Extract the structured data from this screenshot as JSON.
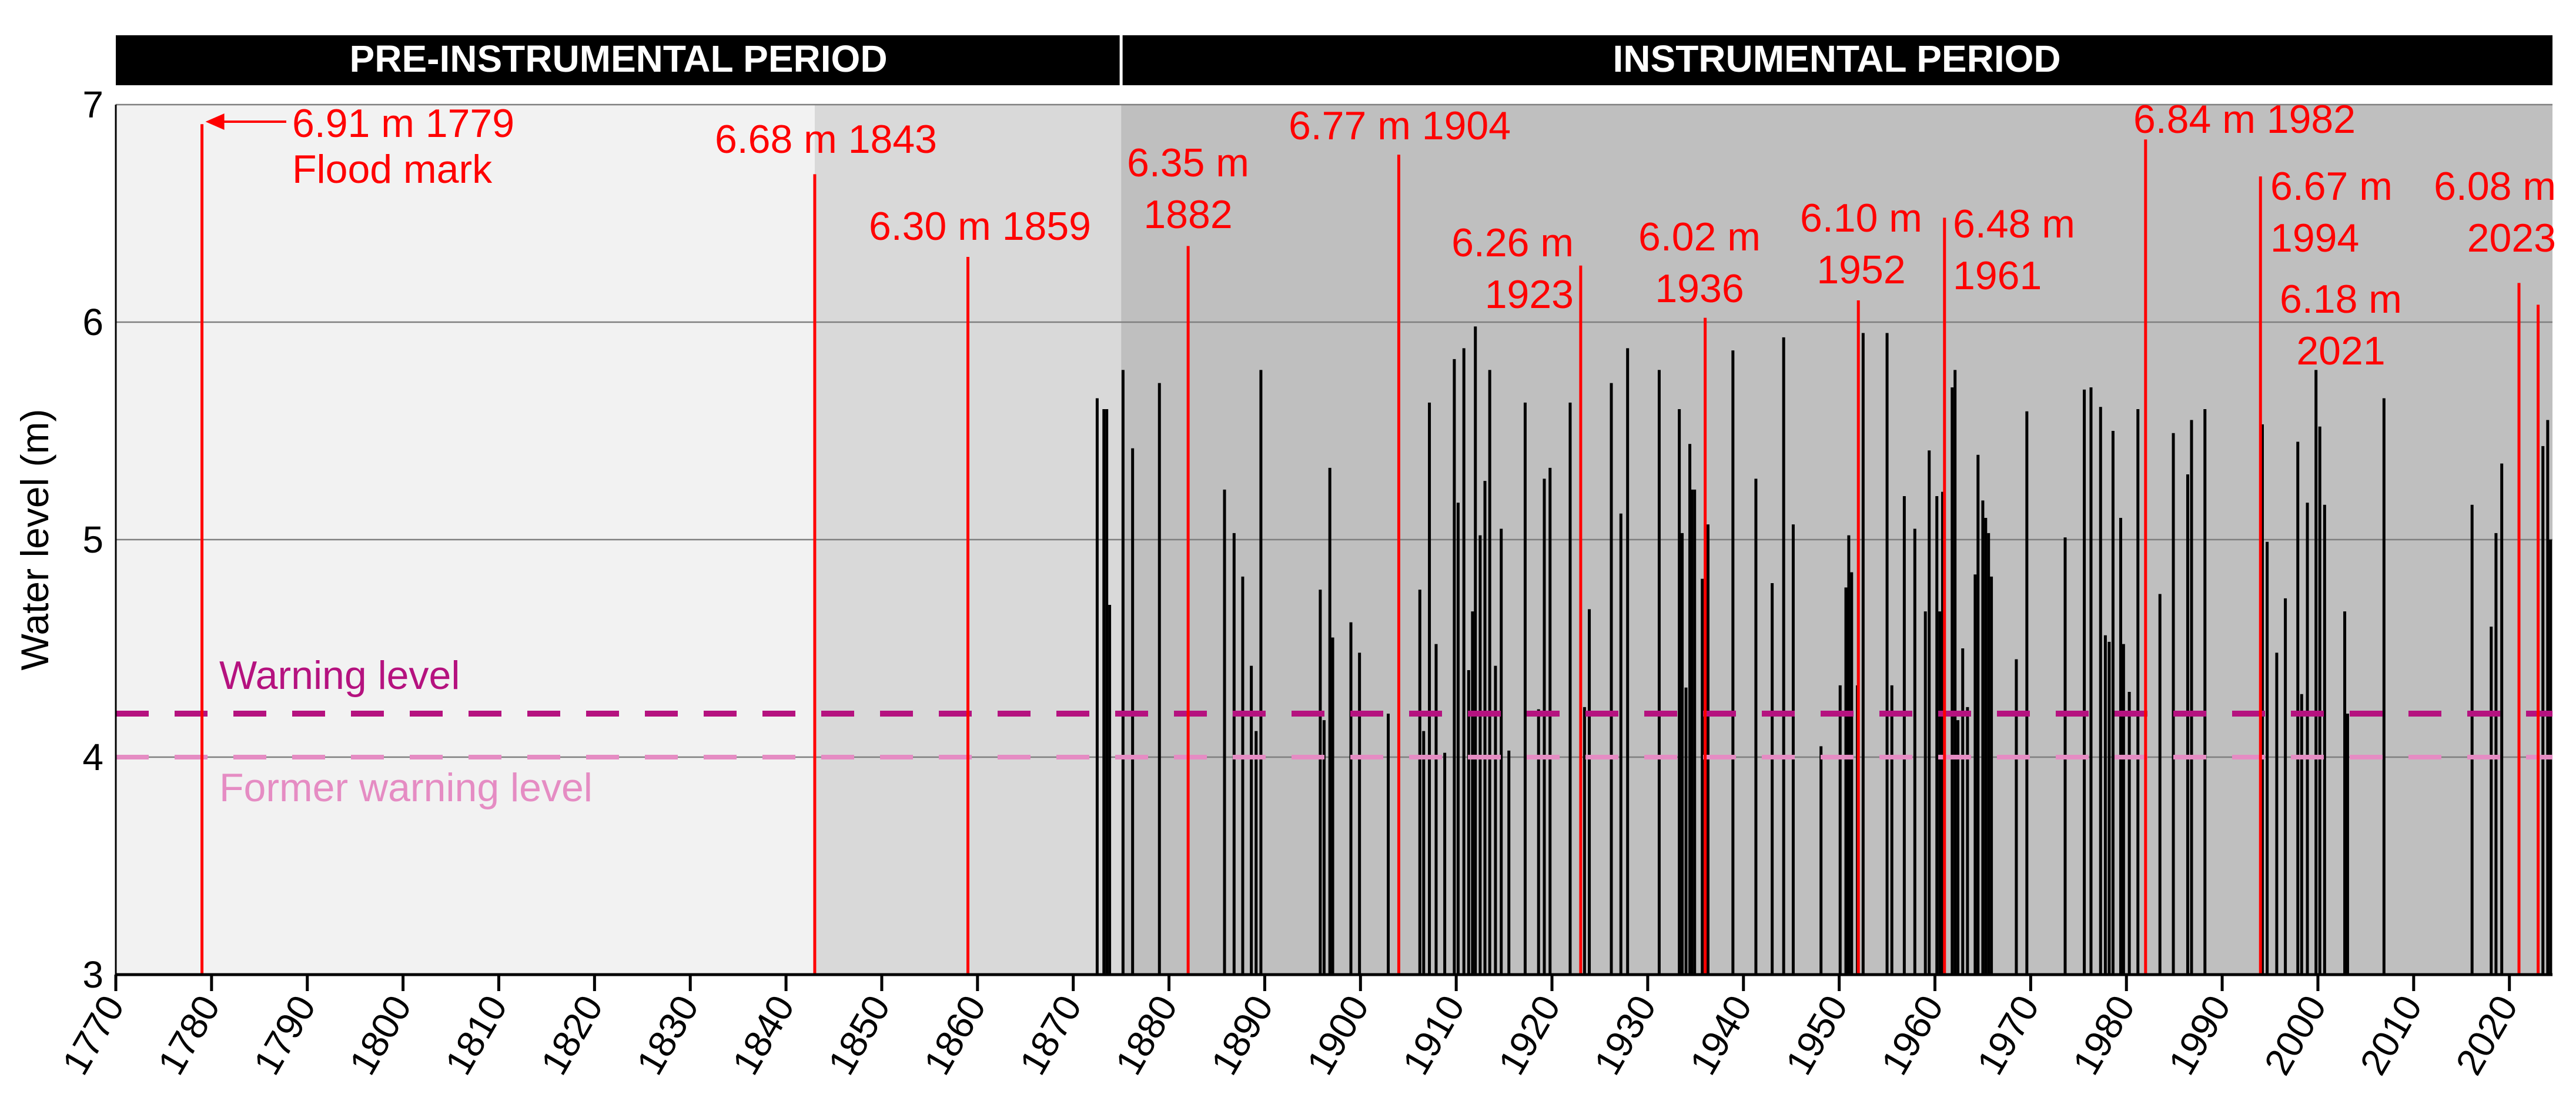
{
  "colors": {
    "header_bg": "#000000",
    "header_text": "#ffffff",
    "bg_pre_early": "#f2f2f2",
    "bg_pre_late": "#d9d9d9",
    "bg_instrumental": "#bfbfbf",
    "grid": "#7f7f7f",
    "bar": "#000000",
    "flood_red": "#ff0000",
    "warning": "#b5127f",
    "former_warning": "#e58cc3",
    "axis": "#000000"
  },
  "periods": [
    {
      "label": "PRE-INSTRUMENTAL PERIOD",
      "start": 1770,
      "end": 1875
    },
    {
      "label": "INSTRUMENTAL PERIOD",
      "start": 1875,
      "end": 2024.5
    }
  ],
  "chart_data": {
    "type": "bar",
    "title": "",
    "xlabel": "",
    "ylabel": "Water level (m)",
    "xlim": [
      1770,
      2024.5
    ],
    "ylim": [
      3,
      7
    ],
    "x_ticks": [
      1770,
      1780,
      1790,
      1800,
      1810,
      1820,
      1830,
      1840,
      1850,
      1860,
      1870,
      1880,
      1890,
      1900,
      1910,
      1920,
      1930,
      1940,
      1950,
      1960,
      1970,
      1980,
      1990,
      2000,
      2010,
      2020
    ],
    "y_ticks": [
      3,
      4,
      5,
      6,
      7
    ],
    "background_regions": [
      {
        "start": 1770,
        "end": 1843,
        "shade": "bg_pre_early"
      },
      {
        "start": 1843,
        "end": 1875,
        "shade": "bg_pre_late"
      },
      {
        "start": 1875,
        "end": 2024.5,
        "shade": "bg_instrumental"
      }
    ],
    "reference_lines": [
      {
        "label": "Warning level",
        "y": 4.2,
        "color_key": "warning"
      },
      {
        "label": "Former warning level",
        "y": 4.0,
        "color_key": "former_warning"
      }
    ],
    "flood_events": [
      {
        "year": 1779,
        "level": 6.91,
        "label_lines": [
          "6.91 m 1779",
          "Flood mark"
        ]
      },
      {
        "year": 1843,
        "level": 6.68,
        "label_lines": [
          "6.68 m 1843"
        ]
      },
      {
        "year": 1859,
        "level": 6.3,
        "label_lines": [
          "6.30 m 1859"
        ]
      },
      {
        "year": 1882,
        "level": 6.35,
        "label_lines": [
          "6.35 m",
          "1882"
        ]
      },
      {
        "year": 1904,
        "level": 6.77,
        "label_lines": [
          "6.77 m 1904"
        ]
      },
      {
        "year": 1923,
        "level": 6.26,
        "label_lines": [
          "6.26 m",
          "1923"
        ]
      },
      {
        "year": 1936,
        "level": 6.02,
        "label_lines": [
          "6.02 m",
          "1936"
        ]
      },
      {
        "year": 1952,
        "level": 6.1,
        "label_lines": [
          "6.10 m",
          "1952"
        ]
      },
      {
        "year": 1961,
        "level": 6.48,
        "label_lines": [
          "6.48 m",
          "1961"
        ]
      },
      {
        "year": 1982,
        "level": 6.84,
        "label_lines": [
          "6.84 m 1982"
        ]
      },
      {
        "year": 1994,
        "level": 6.67,
        "label_lines": [
          "6.67 m",
          "1994"
        ]
      },
      {
        "year": 2021,
        "level": 6.18,
        "label_lines": [
          "6.18 m",
          "2021"
        ]
      },
      {
        "year": 2023,
        "level": 6.08,
        "label_lines": [
          "6.08 m",
          "2023"
        ]
      }
    ],
    "annual_peaks": [
      [
        1872.5,
        5.65
      ],
      [
        1873.2,
        5.6
      ],
      [
        1873.5,
        5.6
      ],
      [
        1873.8,
        4.7
      ],
      [
        1875.2,
        5.78
      ],
      [
        1876.2,
        5.42
      ],
      [
        1879.0,
        5.72
      ],
      [
        1885.8,
        5.23
      ],
      [
        1886.8,
        5.03
      ],
      [
        1887.7,
        4.83
      ],
      [
        1888.6,
        4.42
      ],
      [
        1889.1,
        4.12
      ],
      [
        1889.6,
        5.78
      ],
      [
        1895.8,
        4.77
      ],
      [
        1896.2,
        4.17
      ],
      [
        1896.8,
        5.33
      ],
      [
        1897.1,
        4.55
      ],
      [
        1899.0,
        4.62
      ],
      [
        1899.9,
        4.48
      ],
      [
        1902.9,
        4.2
      ],
      [
        1906.2,
        4.77
      ],
      [
        1906.6,
        4.12
      ],
      [
        1907.2,
        5.63
      ],
      [
        1907.9,
        4.52
      ],
      [
        1908.8,
        4.02
      ],
      [
        1909.8,
        5.83
      ],
      [
        1910.2,
        5.17
      ],
      [
        1910.8,
        5.88
      ],
      [
        1911.3,
        4.4
      ],
      [
        1911.7,
        4.67
      ],
      [
        1912.0,
        5.98
      ],
      [
        1912.5,
        5.02
      ],
      [
        1913.0,
        5.27
      ],
      [
        1913.5,
        5.78
      ],
      [
        1914.1,
        4.42
      ],
      [
        1914.7,
        5.05
      ],
      [
        1915.5,
        4.03
      ],
      [
        1917.2,
        5.63
      ],
      [
        1918.6,
        4.22
      ],
      [
        1919.2,
        5.28
      ],
      [
        1919.8,
        5.33
      ],
      [
        1921.9,
        5.63
      ],
      [
        1923.4,
        4.23
      ],
      [
        1923.9,
        4.68
      ],
      [
        1926.2,
        5.72
      ],
      [
        1927.2,
        5.12
      ],
      [
        1927.9,
        5.88
      ],
      [
        1931.2,
        5.78
      ],
      [
        1933.3,
        5.6
      ],
      [
        1933.6,
        5.03
      ],
      [
        1934.0,
        4.32
      ],
      [
        1934.4,
        5.44
      ],
      [
        1934.6,
        5.23
      ],
      [
        1934.9,
        5.23
      ],
      [
        1935.7,
        4.82
      ],
      [
        1936.3,
        5.07
      ],
      [
        1938.9,
        5.87
      ],
      [
        1941.3,
        5.28
      ],
      [
        1943.0,
        4.8
      ],
      [
        1944.2,
        5.93
      ],
      [
        1945.2,
        5.07
      ],
      [
        1948.1,
        4.05
      ],
      [
        1950.1,
        4.33
      ],
      [
        1950.7,
        4.78
      ],
      [
        1951.0,
        5.02
      ],
      [
        1951.3,
        4.85
      ],
      [
        1951.9,
        4.33
      ],
      [
        1952.5,
        5.95
      ],
      [
        1955.0,
        5.95
      ],
      [
        1955.5,
        4.33
      ],
      [
        1956.8,
        5.2
      ],
      [
        1957.9,
        5.05
      ],
      [
        1959.0,
        4.67
      ],
      [
        1959.4,
        5.41
      ],
      [
        1960.2,
        5.2
      ],
      [
        1960.5,
        4.67
      ],
      [
        1960.8,
        5.22
      ],
      [
        1961.8,
        5.7
      ],
      [
        1962.1,
        5.78
      ],
      [
        1962.4,
        4.17
      ],
      [
        1962.9,
        4.5
      ],
      [
        1963.4,
        4.23
      ],
      [
        1964.2,
        4.84
      ],
      [
        1964.5,
        5.39
      ],
      [
        1965.0,
        5.18
      ],
      [
        1965.3,
        5.1
      ],
      [
        1965.6,
        5.03
      ],
      [
        1965.9,
        4.83
      ],
      [
        1968.5,
        4.45
      ],
      [
        1969.6,
        5.59
      ],
      [
        1973.6,
        5.01
      ],
      [
        1975.6,
        5.69
      ],
      [
        1976.3,
        5.7
      ],
      [
        1977.3,
        5.61
      ],
      [
        1977.8,
        4.56
      ],
      [
        1978.2,
        4.53
      ],
      [
        1978.6,
        5.5
      ],
      [
        1979.4,
        5.1
      ],
      [
        1979.7,
        4.52
      ],
      [
        1980.3,
        4.3
      ],
      [
        1981.2,
        5.6
      ],
      [
        1983.5,
        4.75
      ],
      [
        1984.9,
        5.49
      ],
      [
        1986.4,
        5.3
      ],
      [
        1986.8,
        5.55
      ],
      [
        1988.2,
        5.6
      ],
      [
        1994.2,
        5.53
      ],
      [
        1994.7,
        4.99
      ],
      [
        1995.7,
        4.48
      ],
      [
        1996.6,
        4.73
      ],
      [
        1997.9,
        5.45
      ],
      [
        1998.3,
        4.29
      ],
      [
        1998.9,
        5.17
      ],
      [
        1999.8,
        5.78
      ],
      [
        2000.2,
        5.52
      ],
      [
        2000.7,
        5.16
      ],
      [
        2002.8,
        4.67
      ],
      [
        2003.1,
        4.2
      ],
      [
        2006.9,
        5.65
      ],
      [
        2016.1,
        5.16
      ],
      [
        2018.1,
        4.6
      ],
      [
        2018.6,
        5.03
      ],
      [
        2019.2,
        5.35
      ],
      [
        2023.5,
        5.43
      ],
      [
        2024.0,
        5.55
      ],
      [
        2024.3,
        5.0
      ]
    ]
  }
}
